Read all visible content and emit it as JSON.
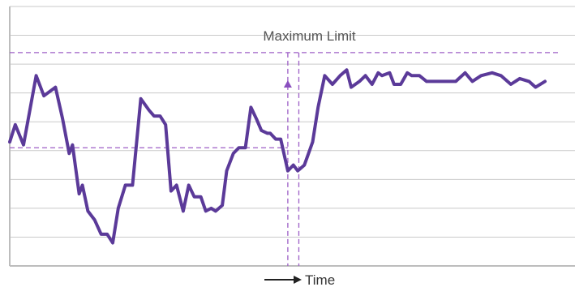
{
  "chart_data": {
    "type": "line",
    "title": "",
    "xlabel": "Time",
    "ylabel": "",
    "annotations": [
      {
        "text": "Maximum Limit",
        "kind": "horizontal-reference",
        "y": 7.4
      }
    ],
    "reference_lines": {
      "upper_y": 7.4,
      "lower_y": 4.1,
      "vertical_x": [
        50.5,
        52.5
      ]
    },
    "marker": {
      "x": 50.5,
      "y": 6.3,
      "shape": "triangle-up"
    },
    "xlim": [
      0,
      100
    ],
    "ylim": [
      0,
      9
    ],
    "grid": true,
    "series": [
      {
        "color": "#5b3a99",
        "x": [
          0,
          1,
          2.5,
          4.8,
          6.2,
          8.3,
          9.6,
          10.8,
          11.4,
          12.6,
          13.2,
          14.2,
          15.4,
          16.6,
          17.7,
          18.7,
          19.7,
          21.0,
          22.3,
          23.8,
          25.3,
          26.2,
          27.3,
          28.3,
          29.3,
          30.3,
          31.5,
          32.5,
          33.5,
          34.7,
          35.6,
          36.6,
          37.4,
          38.6,
          39.4,
          40.6,
          41.6,
          42.8,
          43.8,
          44.8,
          45.7,
          46.8,
          47.3,
          48.3,
          49.2,
          50.5,
          51.5,
          52.3,
          53.5,
          55.0,
          56.0,
          57.2,
          58.6,
          60.0,
          61.2,
          62.0,
          63.5,
          64.6,
          65.8,
          66.9,
          67.6,
          69.0,
          69.8,
          71.0,
          72.2,
          73.0,
          74.4,
          75.7,
          77.0,
          78.6,
          79.8,
          81.0,
          82.7,
          84.0,
          85.6,
          87.6,
          89.2,
          91.0,
          92.6,
          94.3,
          95.5,
          97.2
        ],
        "y": [
          4.3,
          4.9,
          4.2,
          6.6,
          5.9,
          6.2,
          5.1,
          3.9,
          4.2,
          2.5,
          2.8,
          1.9,
          1.6,
          1.1,
          1.1,
          0.8,
          2.0,
          2.8,
          2.8,
          5.8,
          5.4,
          5.2,
          5.2,
          4.9,
          2.6,
          2.8,
          1.9,
          2.8,
          2.4,
          2.4,
          1.9,
          2.0,
          1.9,
          2.1,
          3.3,
          3.9,
          4.1,
          4.1,
          5.5,
          5.1,
          4.7,
          4.6,
          4.6,
          4.4,
          4.4,
          3.3,
          3.5,
          3.3,
          3.5,
          4.3,
          5.5,
          6.6,
          6.3,
          6.6,
          6.8,
          6.2,
          6.4,
          6.6,
          6.3,
          6.7,
          6.6,
          6.7,
          6.3,
          6.3,
          6.7,
          6.6,
          6.6,
          6.4,
          6.4,
          6.4,
          6.4,
          6.4,
          6.7,
          6.4,
          6.6,
          6.7,
          6.6,
          6.3,
          6.5,
          6.4,
          6.2,
          6.4
        ]
      }
    ]
  }
}
